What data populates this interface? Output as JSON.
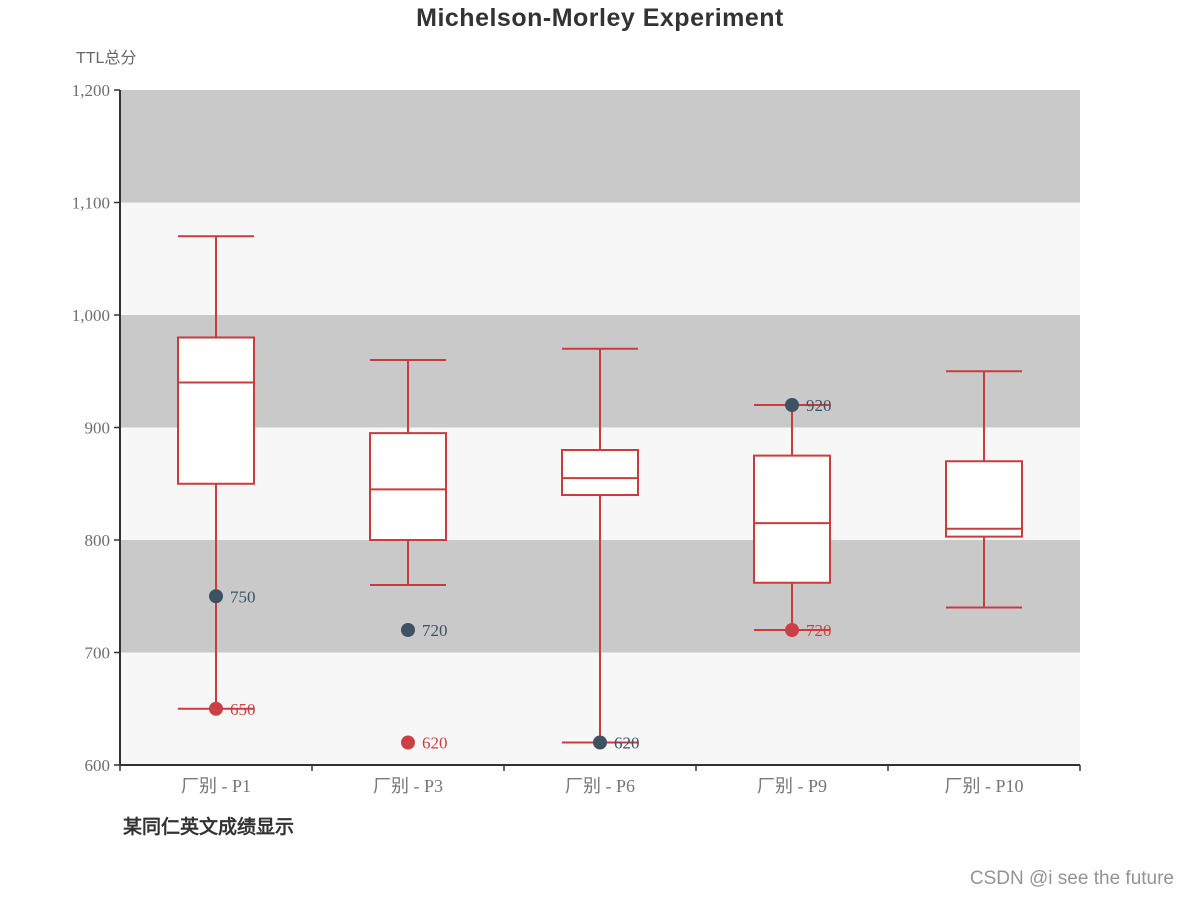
{
  "page": {
    "background": "#ffffff"
  },
  "header": {
    "title": "Michelson-Morley Experiment"
  },
  "footer": {
    "caption": "某同仁英文成绩显示",
    "watermark": "CSDN @i see the future"
  },
  "chart_data": {
    "type": "boxplot",
    "title": "Michelson-Morley Experiment",
    "y_axis": {
      "name": "TTL总分",
      "min": 600,
      "max": 1200,
      "interval": 100,
      "tick_labels": [
        "600",
        "700",
        "800",
        "900",
        "1,000",
        "1,100",
        "1,200"
      ]
    },
    "x_axis": {
      "categories": [
        "厂别 - P1",
        "厂别 - P3",
        "厂别 - P6",
        "厂别 - P9",
        "厂别 - P10"
      ]
    },
    "series": [
      {
        "category": "厂别 - P1",
        "low": 650,
        "q1": 850,
        "median": 940,
        "q3": 980,
        "high": 1070,
        "points": [
          {
            "value": 750,
            "color": "slate",
            "label": "750"
          },
          {
            "value": 650,
            "color": "red",
            "label": "650"
          }
        ]
      },
      {
        "category": "厂别 - P3",
        "low": 760,
        "q1": 800,
        "median": 845,
        "q3": 895,
        "high": 960,
        "points": [
          {
            "value": 720,
            "color": "slate",
            "label": "720"
          },
          {
            "value": 620,
            "color": "red",
            "label": "620"
          }
        ]
      },
      {
        "category": "厂别 - P6",
        "low": 620,
        "q1": 840,
        "median": 855,
        "q3": 880,
        "high": 970,
        "points": [
          {
            "value": 620,
            "color": "slate",
            "label": "620"
          }
        ]
      },
      {
        "category": "厂别 - P9",
        "low": 720,
        "q1": 762,
        "median": 815,
        "q3": 875,
        "high": 920,
        "points": [
          {
            "value": 920,
            "color": "slate",
            "label": "920"
          },
          {
            "value": 720,
            "color": "red",
            "label": "720"
          }
        ]
      },
      {
        "category": "厂别 - P10",
        "low": 740,
        "q1": 803,
        "median": 810,
        "q3": 870,
        "high": 950,
        "points": []
      }
    ],
    "colors": {
      "box_stroke": "#c93c3e",
      "box_fill": "#ffffff",
      "slate_point": "#3d5263",
      "red_point": "#cb4045",
      "axis": "#333333",
      "band_dark": "#c9c9c9",
      "band_light": "#f7f7f7",
      "tick_label": "#6e6e6e",
      "category_label": "#777777"
    },
    "legend_position": "none",
    "grid": "alternating horizontal bands per 100 units, dark band at top (1100-1200)"
  }
}
